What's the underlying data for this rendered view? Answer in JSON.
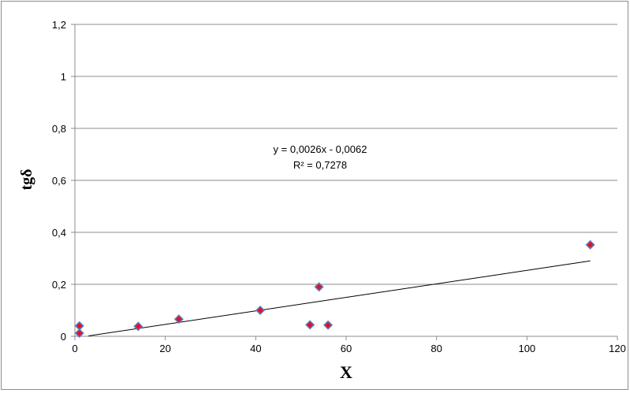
{
  "chart_data": {
    "type": "scatter",
    "xlabel": "X",
    "ylabel": "tgδ",
    "xlim": [
      0,
      120
    ],
    "ylim": [
      0,
      1.2
    ],
    "x_ticks": [
      0,
      20,
      40,
      60,
      80,
      100,
      120
    ],
    "y_ticks": [
      0,
      0.2,
      0.4,
      0.6,
      0.8,
      1,
      1.2
    ],
    "x_tick_labels": [
      "0",
      "20",
      "40",
      "60",
      "80",
      "100",
      "120"
    ],
    "y_tick_labels": [
      "0",
      "0,2",
      "0,4",
      "0,6",
      "0,8",
      "1",
      "1,2"
    ],
    "grid": "horizontal",
    "marker": {
      "shape": "diamond",
      "fill": "#e0141e",
      "stroke": "#5b7fc7"
    },
    "points": [
      {
        "x": 1,
        "y": 0.04
      },
      {
        "x": 1,
        "y": 0.012
      },
      {
        "x": 14,
        "y": 0.038
      },
      {
        "x": 23,
        "y": 0.066
      },
      {
        "x": 41,
        "y": 0.1
      },
      {
        "x": 52,
        "y": 0.044
      },
      {
        "x": 54,
        "y": 0.19
      },
      {
        "x": 56,
        "y": 0.043
      },
      {
        "x": 114,
        "y": 0.352
      }
    ],
    "trendline": {
      "slope": 0.0026,
      "intercept": -0.0062,
      "x_range": [
        3,
        114
      ],
      "color": "#000000"
    },
    "annotations": {
      "equation": "y = 0,0026x - 0,0062",
      "r_squared": "R² = 0,7278"
    }
  }
}
